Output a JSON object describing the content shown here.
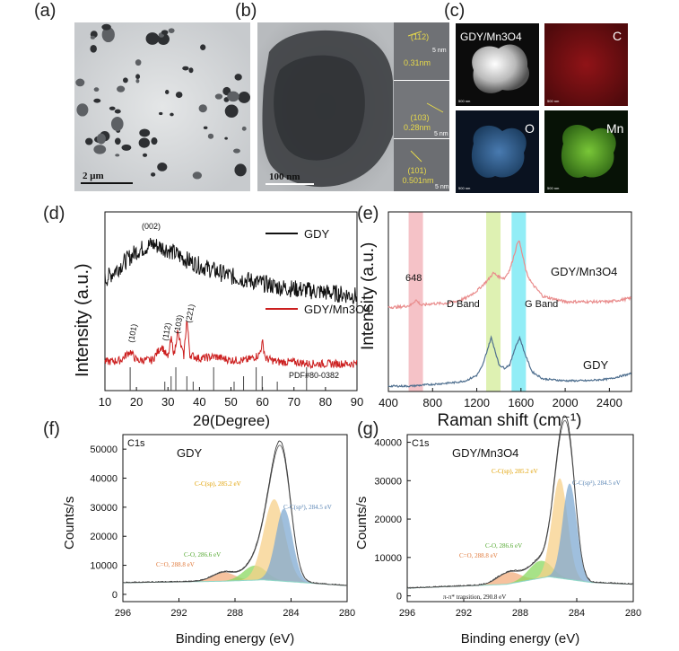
{
  "panel_labels": [
    "(a)",
    "(b)",
    "(c)",
    "(d)",
    "(e)",
    "(f)",
    "(g)"
  ],
  "tem": {
    "a_scale": "2 μm",
    "b_scale": "100 nm",
    "b_lattice": [
      {
        "hkl": "(112)",
        "d": "0.31nm",
        "scale": "5 nm"
      },
      {
        "hkl": "(103)",
        "d": "0.28nm",
        "scale": "5 nm"
      },
      {
        "hkl": "(101)",
        "d": "0.501nm",
        "scale": "5 nm"
      }
    ]
  },
  "mapping": {
    "tiles": [
      "GDY/Mn3O4",
      "C",
      "O",
      "Mn"
    ],
    "scale": "500 nm"
  },
  "colors": {
    "black_line": "#111111",
    "red_line": "#cc1f1f",
    "pink_line": "#e98c8c",
    "blue_line": "#4f6f8f",
    "pink_band": "#f3b7bd",
    "green_band": "#d8efa5",
    "cyan_band": "#7feaf4",
    "orange_fill": "#f3ad7d",
    "yellow_fill": "#f7d08a",
    "green_fill": "#89d860",
    "blue_fill": "#7fa9d2"
  },
  "chart_data": [
    {
      "panel": "(d)",
      "type": "line",
      "xlabel": "2θ(Degree)",
      "ylabel": "Intensity (a.u.)",
      "xlim": [
        10,
        90
      ],
      "xticks": [
        10,
        20,
        30,
        40,
        50,
        60,
        70,
        80,
        90
      ],
      "series": [
        {
          "name": "GDY",
          "x": [
            10,
            15,
            20,
            25,
            30,
            35,
            40,
            45,
            50,
            55,
            60,
            65,
            70,
            75,
            80,
            85,
            90
          ],
          "values": [
            0.62,
            0.7,
            0.78,
            0.82,
            0.79,
            0.74,
            0.7,
            0.67,
            0.64,
            0.62,
            0.6,
            0.58,
            0.57,
            0.56,
            0.55,
            0.54,
            0.53
          ]
        },
        {
          "name": "GDY/Mn3O4",
          "x": [
            10,
            15,
            18,
            20,
            25,
            28,
            30,
            31,
            32,
            33,
            35,
            36,
            37,
            40,
            45,
            50,
            55,
            59,
            60,
            61,
            65,
            70,
            75,
            80,
            85,
            90
          ],
          "values": [
            0.16,
            0.17,
            0.22,
            0.17,
            0.17,
            0.25,
            0.18,
            0.29,
            0.2,
            0.33,
            0.19,
            0.4,
            0.2,
            0.18,
            0.19,
            0.17,
            0.17,
            0.2,
            0.27,
            0.18,
            0.16,
            0.16,
            0.15,
            0.15,
            0.15,
            0.15
          ]
        }
      ],
      "annotations": [
        "(002)",
        "(101)",
        "(112)",
        "(103)",
        "(221)"
      ],
      "reference": "PDF#80-0382",
      "reference_lines": [
        18,
        29,
        31,
        32.5,
        36,
        38,
        44.5,
        51,
        54,
        58,
        59.9,
        64.7,
        74
      ]
    },
    {
      "panel": "(e)",
      "type": "line",
      "xlabel": "Raman shift (cm⁻¹)",
      "ylabel": "Intensity (a.u.)",
      "xlim": [
        400,
        2600
      ],
      "xticks": [
        400,
        800,
        1200,
        1600,
        2000,
        2400
      ],
      "series": [
        {
          "name": "GDY/Mn3O4",
          "x": [
            400,
            500,
            600,
            648,
            700,
            800,
            900,
            1000,
            1100,
            1200,
            1300,
            1350,
            1400,
            1450,
            1500,
            1580,
            1650,
            1700,
            1800,
            2000,
            2200,
            2400,
            2600
          ],
          "values": [
            0.47,
            0.47,
            0.48,
            0.51,
            0.48,
            0.49,
            0.49,
            0.5,
            0.52,
            0.56,
            0.62,
            0.66,
            0.64,
            0.63,
            0.68,
            0.85,
            0.66,
            0.6,
            0.53,
            0.5,
            0.5,
            0.5,
            0.52
          ]
        },
        {
          "name": "GDY",
          "x": [
            400,
            600,
            800,
            1000,
            1100,
            1200,
            1250,
            1300,
            1330,
            1360,
            1400,
            1450,
            1500,
            1550,
            1590,
            1630,
            1700,
            1800,
            2000,
            2200,
            2400,
            2600
          ],
          "values": [
            0.03,
            0.03,
            0.04,
            0.05,
            0.06,
            0.09,
            0.14,
            0.24,
            0.3,
            0.24,
            0.15,
            0.13,
            0.15,
            0.25,
            0.3,
            0.22,
            0.11,
            0.07,
            0.06,
            0.06,
            0.07,
            0.1
          ]
        }
      ],
      "bands": [
        {
          "center": 648
        },
        {
          "center": 1350
        },
        {
          "center": 1580
        }
      ],
      "annotations": [
        "648",
        "D Band",
        "G Band"
      ]
    },
    {
      "panel": "(f)",
      "type": "area",
      "title": "C1s",
      "series_label": "GDY",
      "xlabel": "Binding energy (eV)",
      "ylabel": "Counts/s",
      "xlim": [
        296,
        280
      ],
      "ylim": [
        -2500,
        55000
      ],
      "xticks": [
        296,
        292,
        288,
        284,
        280
      ],
      "yticks": [
        0,
        10000,
        20000,
        30000,
        40000,
        50000
      ],
      "peaks": [
        {
          "label": "C=O, 288.8 eV",
          "center": 288.8,
          "amplitude": 3000,
          "width": 0.8
        },
        {
          "label": "C-O, 286.6 eV",
          "center": 286.6,
          "amplitude": 5000,
          "width": 0.8
        },
        {
          "label": "C-C(sp), 285.2 eV",
          "center": 285.2,
          "amplitude": 28000,
          "width": 0.75
        },
        {
          "label": "C-C(sp²), 284.5 eV",
          "center": 284.5,
          "amplitude": 25000,
          "width": 0.6
        }
      ],
      "baseline": [
        [
          296,
          4000
        ],
        [
          289,
          4500
        ],
        [
          286,
          5000
        ],
        [
          283,
          4000
        ],
        [
          280,
          3000
        ]
      ]
    },
    {
      "panel": "(g)",
      "type": "area",
      "title": "C1s",
      "series_label": "GDY/Mn3O4",
      "xlabel": "Binding energy (eV)",
      "ylabel": "Counts/s",
      "xlim": [
        296,
        280
      ],
      "ylim": [
        -1500,
        42000
      ],
      "xticks": [
        296,
        292,
        288,
        284,
        280
      ],
      "yticks": [
        0,
        10000,
        20000,
        30000,
        40000
      ],
      "peaks": [
        {
          "label": "C=O, 288.8 eV",
          "center": 288.8,
          "amplitude": 3000,
          "width": 0.8
        },
        {
          "label": "C-O, 286.6 eV",
          "center": 286.6,
          "amplitude": 4500,
          "width": 0.8
        },
        {
          "label": "C-C(sp), 285.2 eV",
          "center": 285.2,
          "amplitude": 26000,
          "width": 0.55
        },
        {
          "label": "C-C(sp²), 284.5 eV",
          "center": 284.5,
          "amplitude": 25000,
          "width": 0.5
        }
      ],
      "annotations": [
        "π-π* transition, 290.8 eV"
      ],
      "baseline": [
        [
          296,
          2000
        ],
        [
          289,
          3000
        ],
        [
          286,
          5000
        ],
        [
          283,
          3500
        ],
        [
          280,
          3000
        ]
      ]
    }
  ]
}
